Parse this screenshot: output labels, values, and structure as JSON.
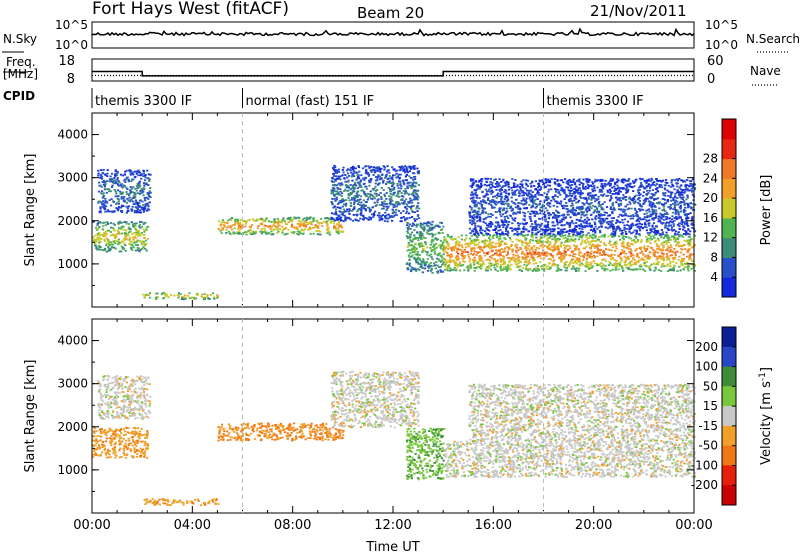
{
  "header": {
    "title": "Fort Hays West (fitACF)",
    "beam": "Beam 20",
    "date": "21/Nov/2011"
  },
  "left_labels": {
    "nsky": "N.Sky",
    "freq_line1": "Freq.",
    "freq_line2": "[MHz]",
    "cpid": "CPID"
  },
  "right_labels": {
    "nsearch": "N.Search",
    "nave": "Nave"
  },
  "noise_panel": {
    "left_ticks": [
      "10^5",
      "10^0"
    ],
    "right_ticks": [
      "10^5",
      "10^0"
    ]
  },
  "freq_panel": {
    "left_ticks": [
      "18",
      "8"
    ],
    "right_ticks": [
      "60",
      "0"
    ],
    "ylim": [
      8,
      18
    ],
    "nave_ylim": [
      0,
      60
    ],
    "freq_steps": [
      {
        "start_h": 0.0,
        "end_h": 2.0,
        "value": 12.3
      },
      {
        "start_h": 2.0,
        "end_h": 14.0,
        "value": 10.3
      },
      {
        "start_h": 14.0,
        "end_h": 24.0,
        "value": 12.3
      }
    ],
    "nave_steps": [
      {
        "start_h": 0.0,
        "end_h": 2.0,
        "value": 15
      },
      {
        "start_h": 2.0,
        "end_h": 14.0,
        "value": 15
      },
      {
        "start_h": 14.0,
        "end_h": 24.0,
        "value": 15
      }
    ]
  },
  "cpid": {
    "segments": [
      {
        "start_h": 0.0,
        "label": "themis 3300 IF"
      },
      {
        "start_h": 6.0,
        "label": "normal (fast) 151 IF"
      },
      {
        "start_h": 18.0,
        "label": "themis 3300 IF"
      }
    ]
  },
  "colorbars": {
    "power": {
      "label": "Power [dB]",
      "ticks": [
        "4",
        "8",
        "12",
        "16",
        "20",
        "24",
        "28"
      ],
      "colors": [
        "#1428dc",
        "#2850c8",
        "#3c8c78",
        "#50b450",
        "#c8c828",
        "#f0a028",
        "#f07828",
        "#e62814",
        "#dc0000"
      ]
    },
    "velocity": {
      "label_main": "Velocity [m s",
      "label_sup": "-1",
      "label_end": "]",
      "ticks": [
        "200",
        "100",
        "50",
        "15",
        "-15",
        "-50",
        "-100",
        "-200"
      ],
      "colors": [
        "#0a1e96",
        "#2846c8",
        "#3c8c3c",
        "#78c83c",
        "#c8c8c8",
        "#f0a028",
        "#f07814",
        "#e61e0a",
        "#c80000"
      ]
    }
  },
  "chart_data": [
    {
      "type": "heatmap",
      "panel": "power",
      "title": "Fort Hays West (fitACF)",
      "xlabel": "",
      "ylabel": "Slant Range [km]",
      "xlim_h": [
        0,
        24
      ],
      "ylim": [
        0,
        4500
      ],
      "yticks": [
        "1000",
        "2000",
        "3000",
        "4000"
      ],
      "echo_bands": [
        {
          "start_h": 0.0,
          "end_h": 2.2,
          "range_low": 1300,
          "range_high": 2000,
          "power_db": 18
        },
        {
          "start_h": 0.2,
          "end_h": 2.3,
          "range_low": 2200,
          "range_high": 3200,
          "power_db": 8
        },
        {
          "start_h": 5.0,
          "end_h": 10.0,
          "range_low": 1700,
          "range_high": 2100,
          "power_db": 22
        },
        {
          "start_h": 9.5,
          "end_h": 13.0,
          "range_low": 2000,
          "range_high": 3300,
          "power_db": 8
        },
        {
          "start_h": 12.5,
          "end_h": 14.0,
          "range_low": 800,
          "range_high": 2000,
          "power_db": 14
        },
        {
          "start_h": 14.0,
          "end_h": 24.0,
          "range_low": 850,
          "range_high": 1700,
          "power_db": 24
        },
        {
          "start_h": 15.0,
          "end_h": 24.0,
          "range_low": 1700,
          "range_high": 3000,
          "power_db": 6
        },
        {
          "start_h": 2.0,
          "end_h": 5.0,
          "range_low": 200,
          "range_high": 350,
          "power_db": 20
        }
      ]
    },
    {
      "type": "heatmap",
      "panel": "velocity",
      "xlabel": "Time UT",
      "ylabel": "Slant Range [km]",
      "xlim_h": [
        0,
        24
      ],
      "ylim": [
        0,
        4500
      ],
      "yticks": [
        "1000",
        "2000",
        "3000",
        "4000"
      ],
      "xticks": [
        "00:00",
        "04:00",
        "08:00",
        "12:00",
        "16:00",
        "20:00",
        "00:00"
      ],
      "echo_bands": [
        {
          "start_h": 0.0,
          "end_h": 2.2,
          "range_low": 1300,
          "range_high": 2000,
          "velocity": -40
        },
        {
          "start_h": 0.2,
          "end_h": 2.3,
          "range_low": 2200,
          "range_high": 3200,
          "velocity": 0
        },
        {
          "start_h": 5.0,
          "end_h": 10.0,
          "range_low": 1700,
          "range_high": 2100,
          "velocity": -50
        },
        {
          "start_h": 9.5,
          "end_h": 13.0,
          "range_low": 2000,
          "range_high": 3300,
          "velocity": 0
        },
        {
          "start_h": 12.5,
          "end_h": 14.0,
          "range_low": 800,
          "range_high": 2000,
          "velocity": 40
        },
        {
          "start_h": 14.0,
          "end_h": 24.0,
          "range_low": 850,
          "range_high": 1700,
          "velocity": 0
        },
        {
          "start_h": 15.0,
          "end_h": 24.0,
          "range_low": 1700,
          "range_high": 3000,
          "velocity": 0
        },
        {
          "start_h": 2.0,
          "end_h": 5.0,
          "range_low": 200,
          "range_high": 350,
          "velocity": -40
        }
      ]
    }
  ]
}
